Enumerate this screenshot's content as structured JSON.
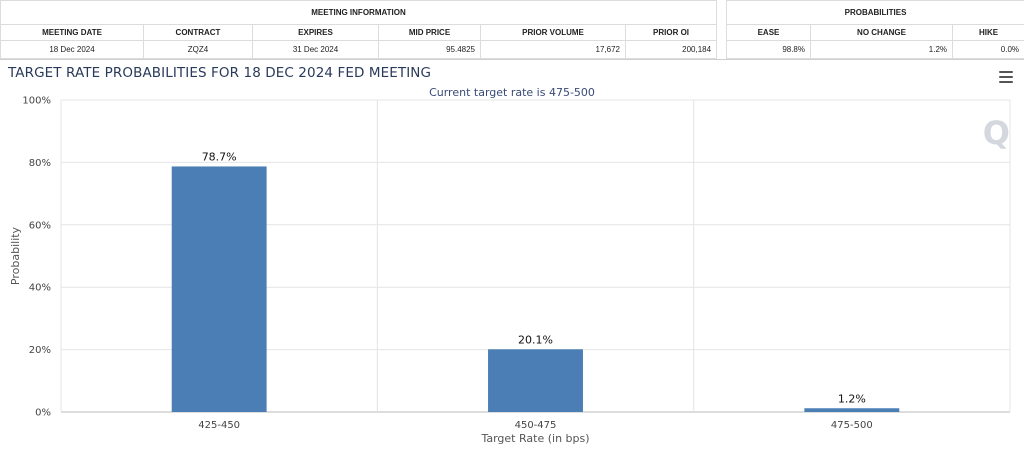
{
  "meeting_info": {
    "group_title": "MEETING INFORMATION",
    "headers": [
      "MEETING DATE",
      "CONTRACT",
      "EXPIRES",
      "MID PRICE",
      "PRIOR VOLUME",
      "PRIOR OI"
    ],
    "row": [
      "18 Dec 2024",
      "ZQZ4",
      "31 Dec 2024",
      "95.4825",
      "17,672",
      "200,184"
    ]
  },
  "probabilities": {
    "group_title": "PROBABILITIES",
    "headers": [
      "EASE",
      "NO CHANGE",
      "HIKE"
    ],
    "row": [
      "98.8%",
      "1.2%",
      "0.0%"
    ]
  },
  "chart": {
    "title": "TARGET RATE PROBABILITIES FOR 18 DEC 2024 FED MEETING",
    "subtitle": "Current target rate is 475-500",
    "menu_icon": "hamburger-menu-icon",
    "watermark_icon": "Q"
  },
  "chart_data": {
    "type": "bar",
    "title": "TARGET RATE PROBABILITIES FOR 18 DEC 2024 FED MEETING",
    "subtitle": "Current target rate is 475-500",
    "categories": [
      "425-450",
      "450-475",
      "475-500"
    ],
    "values": [
      78.7,
      20.1,
      1.2
    ],
    "data_labels": [
      "78.7%",
      "20.1%",
      "1.2%"
    ],
    "xlabel": "Target Rate (in bps)",
    "ylabel": "Probability",
    "ylim": [
      0,
      100
    ],
    "yticks": [
      0,
      20,
      40,
      60,
      80,
      100
    ],
    "ytick_labels": [
      "0%",
      "20%",
      "40%",
      "60%",
      "80%",
      "100%"
    ],
    "grid": true,
    "bar_color": "#4a7eb5"
  }
}
